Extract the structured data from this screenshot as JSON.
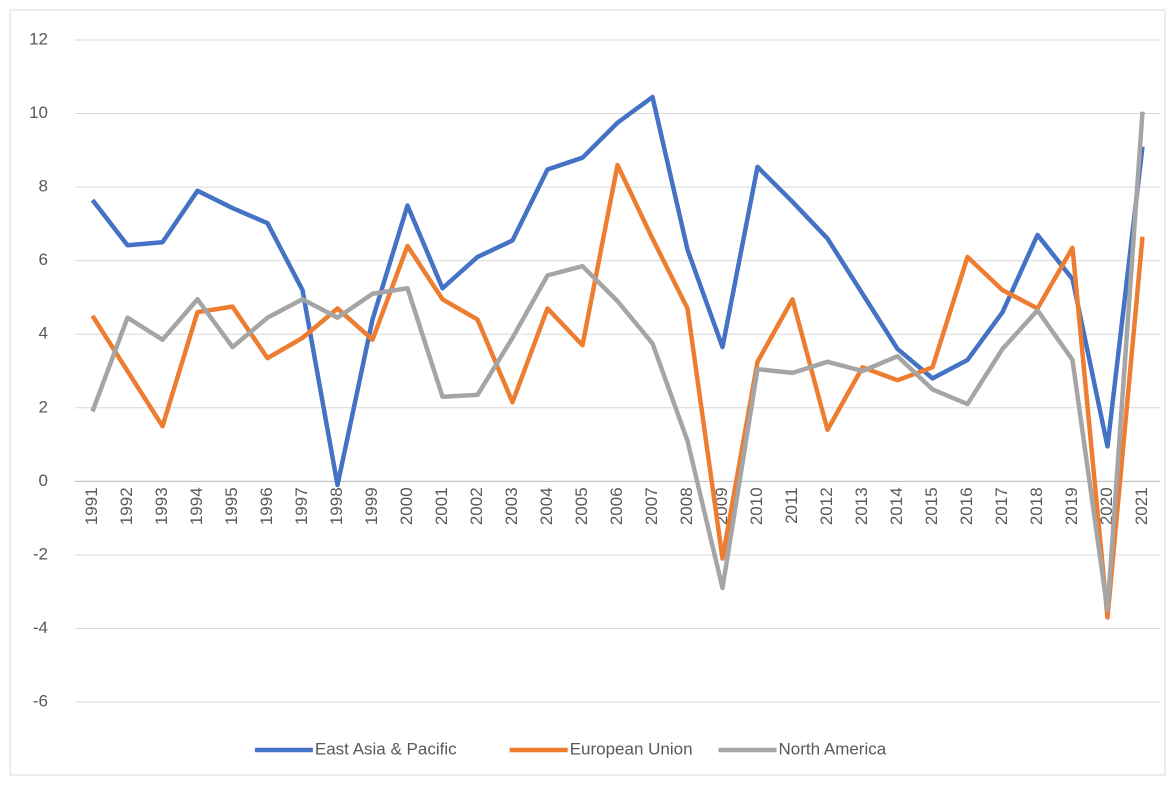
{
  "chart_data": {
    "type": "line",
    "categories": [
      "1991",
      "1992",
      "1993",
      "1994",
      "1995",
      "1996",
      "1997",
      "1998",
      "1999",
      "2000",
      "2001",
      "2002",
      "2003",
      "2004",
      "2005",
      "2006",
      "2007",
      "2008",
      "2009",
      "2010",
      "2011",
      "2012",
      "2013",
      "2014",
      "2015",
      "2016",
      "2017",
      "2018",
      "2019",
      "2020",
      "2021"
    ],
    "series": [
      {
        "name": "East Asia & Pacific",
        "color": "#4472c4",
        "values": [
          7.65,
          6.42,
          6.5,
          7.9,
          7.43,
          7.02,
          5.2,
          -0.1,
          4.4,
          7.5,
          5.25,
          6.1,
          6.55,
          8.48,
          8.8,
          9.75,
          10.45,
          6.3,
          3.65,
          8.55,
          7.6,
          6.6,
          5.1,
          3.6,
          2.8,
          3.3,
          4.6,
          6.7,
          5.5,
          0.95,
          9.1
        ]
      },
      {
        "name": "European Union",
        "color": "#ed7d31",
        "values": [
          4.5,
          3.0,
          1.5,
          4.6,
          4.75,
          3.35,
          3.9,
          4.7,
          3.85,
          6.4,
          4.95,
          4.4,
          2.15,
          4.7,
          3.7,
          8.6,
          6.6,
          4.7,
          -2.1,
          3.25,
          4.95,
          1.4,
          3.1,
          2.75,
          3.1,
          6.1,
          5.2,
          4.7,
          6.35,
          -3.7,
          6.65
        ]
      },
      {
        "name": "North America",
        "color": "#a5a5a5",
        "values": [
          1.9,
          4.45,
          3.85,
          4.95,
          3.65,
          4.45,
          4.95,
          4.45,
          5.1,
          5.25,
          2.3,
          2.35,
          3.9,
          5.6,
          5.85,
          4.9,
          3.75,
          1.1,
          -2.9,
          3.05,
          2.95,
          3.25,
          3.0,
          3.4,
          2.5,
          2.1,
          3.6,
          4.65,
          3.3,
          -3.5,
          10.05
        ]
      }
    ],
    "ylim": [
      -6,
      12
    ],
    "yticks": [
      -6,
      -4,
      -2,
      0,
      2,
      4,
      6,
      8,
      10,
      12
    ],
    "grid": true,
    "legend": "bottom"
  }
}
